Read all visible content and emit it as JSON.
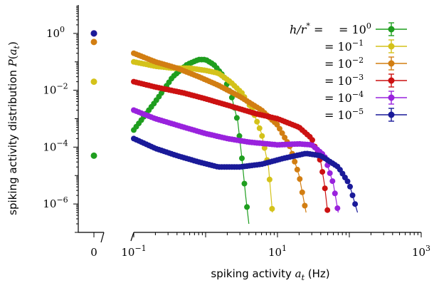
{
  "chart_data": {
    "type": "scatter",
    "xlabel": "spiking activity a_t (Hz)",
    "xlabel_parts": [
      "spiking activity ",
      "a",
      "t",
      " (Hz)"
    ],
    "ylabel": "spiking activity distribution P(a_t)",
    "ylabel_parts": [
      "spiking activity distribution ",
      "P",
      "(",
      "a",
      "t",
      ")"
    ],
    "x_scale": "log",
    "y_scale": "log",
    "xlim": [
      0.1,
      1000
    ],
    "ylim": [
      1e-07,
      10
    ],
    "x_ticks": [
      {
        "base": "0",
        "exp": ""
      },
      {
        "base": "10",
        "exp": "−1"
      },
      {
        "base": "10",
        "exp": "1"
      },
      {
        "base": "10",
        "exp": "3"
      }
    ],
    "y_ticks": [
      {
        "value": 1,
        "base": "10",
        "exp": "0"
      },
      {
        "value": 0.01,
        "base": "10",
        "exp": "−2"
      },
      {
        "value": 0.0001,
        "base": "10",
        "exp": "−4"
      },
      {
        "value": 1e-06,
        "base": "10",
        "exp": "−6"
      }
    ],
    "legend_placement": "top-right",
    "legend_prefix": "h/r* =",
    "series": [
      {
        "name": "10^0",
        "label_base": "10",
        "label_exp": "0",
        "color": "#1f9e1f",
        "p0": 5e-05,
        "points": [
          [
            0.1,
            0.0004
          ],
          [
            0.2,
            0.004
          ],
          [
            0.35,
            0.03
          ],
          [
            0.55,
            0.08
          ],
          [
            0.8,
            0.12
          ],
          [
            1.0,
            0.12
          ],
          [
            1.3,
            0.08
          ],
          [
            1.8,
            0.03
          ],
          [
            2.3,
            0.006
          ],
          [
            2.8,
            0.0008
          ],
          [
            3.2,
            4e-05
          ],
          [
            3.6,
            2e-06
          ],
          [
            4.0,
            2e-07
          ]
        ]
      },
      {
        "name": "10^-1",
        "label_base": "10",
        "label_exp": "−1",
        "color": "#d4c21a",
        "p0": 0.02,
        "points": [
          [
            0.1,
            0.1
          ],
          [
            0.2,
            0.07
          ],
          [
            0.35,
            0.06
          ],
          [
            0.6,
            0.06
          ],
          [
            1.0,
            0.05
          ],
          [
            1.5,
            0.04
          ],
          [
            2.2,
            0.02
          ],
          [
            3.2,
            0.008
          ],
          [
            4.5,
            0.002
          ],
          [
            6.0,
            0.0003
          ],
          [
            7.5,
            2e-05
          ],
          [
            8.5,
            5e-07
          ]
        ]
      },
      {
        "name": "10^-2",
        "label_base": "10",
        "label_exp": "−2",
        "color": "#d27e12",
        "p0": 0.5,
        "points": [
          [
            0.1,
            0.2
          ],
          [
            0.2,
            0.1
          ],
          [
            0.4,
            0.06
          ],
          [
            0.8,
            0.03
          ],
          [
            1.5,
            0.015
          ],
          [
            3.0,
            0.006
          ],
          [
            6.0,
            0.002
          ],
          [
            10,
            0.0006
          ],
          [
            15,
            0.0001
          ],
          [
            20,
            1e-05
          ],
          [
            25,
            5e-07
          ]
        ]
      },
      {
        "name": "10^-3",
        "label_base": "10",
        "label_exp": "−3",
        "color": "#cc1111",
        "p0": 1.0,
        "points": [
          [
            0.1,
            0.02
          ],
          [
            0.2,
            0.013
          ],
          [
            0.5,
            0.008
          ],
          [
            1.0,
            0.005
          ],
          [
            2.0,
            0.003
          ],
          [
            5.0,
            0.0015
          ],
          [
            10,
            0.001
          ],
          [
            20,
            0.0005
          ],
          [
            30,
            0.0002
          ],
          [
            40,
            3e-05
          ],
          [
            45,
            5e-06
          ],
          [
            50,
            5e-07
          ]
        ]
      },
      {
        "name": "10^-4",
        "label_base": "10",
        "label_exp": "−4",
        "color": "#9922dd",
        "p0": 1.0,
        "points": [
          [
            0.1,
            0.002
          ],
          [
            0.2,
            0.001
          ],
          [
            0.5,
            0.0005
          ],
          [
            1.0,
            0.0003
          ],
          [
            2.0,
            0.0002
          ],
          [
            4.0,
            0.00015
          ],
          [
            10,
            0.00012
          ],
          [
            20,
            0.00013
          ],
          [
            30,
            0.00012
          ],
          [
            45,
            5e-05
          ],
          [
            60,
            5e-06
          ],
          [
            70,
            5e-07
          ]
        ]
      },
      {
        "name": "10^-5",
        "label_base": "10",
        "label_exp": "−5",
        "color": "#1a1a99",
        "p0": 1.0,
        "points": [
          [
            0.1,
            0.0002
          ],
          [
            0.2,
            9e-05
          ],
          [
            0.4,
            5e-05
          ],
          [
            0.8,
            3e-05
          ],
          [
            1.5,
            2e-05
          ],
          [
            3.0,
            2e-05
          ],
          [
            6.0,
            2.5e-05
          ],
          [
            12,
            4e-05
          ],
          [
            25,
            6e-05
          ],
          [
            40,
            5e-05
          ],
          [
            70,
            2e-05
          ],
          [
            100,
            5e-06
          ],
          [
            130,
            5e-07
          ]
        ]
      }
    ]
  }
}
